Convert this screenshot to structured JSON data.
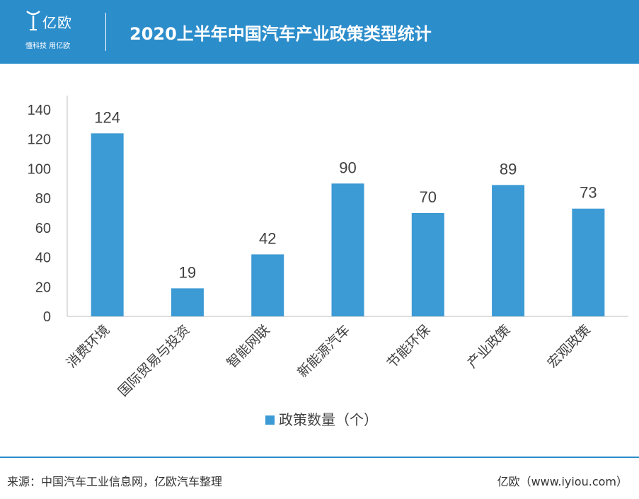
{
  "header": {
    "logo_name": "亿欧",
    "logo_slogan": "懂科技 用亿欧",
    "title": "2020上半年中国汽车产业政策类型统计",
    "background_color": "#2c8dcb",
    "logo_icon": "yiou-logo-icon"
  },
  "chart_data": {
    "type": "bar",
    "categories": [
      "消费环境",
      "国际贸易与投资",
      "智能网联",
      "新能源汽车",
      "节能环保",
      "产业政策",
      "宏观政策"
    ],
    "series": [
      {
        "name": "政策数量（个）",
        "values": [
          124,
          19,
          42,
          90,
          70,
          89,
          73
        ],
        "color": "#3c9ad4"
      }
    ],
    "ylim": [
      0,
      140
    ],
    "yticks": [
      0,
      20,
      40,
      60,
      80,
      100,
      120,
      140
    ],
    "data_labels": true,
    "grid": false,
    "legend_position": "bottom"
  },
  "footer": {
    "source": "来源：中国汽车工业信息网，亿欧汽车整理",
    "credit": "亿欧（www.iyiou.com）"
  }
}
